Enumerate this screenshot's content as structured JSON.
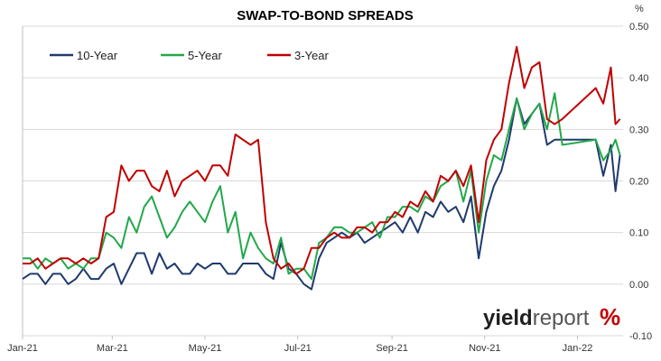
{
  "chart_data": {
    "type": "line",
    "title": "SWAP-TO-BOND SPREADS",
    "y_unit_label": "%",
    "xlabel": "",
    "ylabel": "",
    "ylim": [
      -0.1,
      0.5
    ],
    "y_ticks": [
      "0.50",
      "0.40",
      "0.30",
      "0.20",
      "0.10",
      "0.00",
      "-0.10"
    ],
    "x_ticks": [
      "Jan-21",
      "Mar-21",
      "May-21",
      "Jul-21",
      "Sep-21",
      "Nov-21",
      "Jan-22"
    ],
    "x_tick_dates": [
      "2021-01-01",
      "2021-03-01",
      "2021-05-01",
      "2021-07-01",
      "2021-09-01",
      "2021-11-01",
      "2022-01-01"
    ],
    "xlim": [
      "2021-01-01",
      "2022-01-31"
    ],
    "grid": "horizontal",
    "legend_position": "top-left",
    "series": [
      {
        "name": "10-Year",
        "color": "#1f3a6e",
        "points": [
          [
            "2021-01-01",
            0.01
          ],
          [
            "2021-01-06",
            0.02
          ],
          [
            "2021-01-11",
            0.02
          ],
          [
            "2021-01-16",
            0.0
          ],
          [
            "2021-01-21",
            0.02
          ],
          [
            "2021-01-26",
            0.02
          ],
          [
            "2021-01-31",
            0.0
          ],
          [
            "2021-02-05",
            0.01
          ],
          [
            "2021-02-10",
            0.03
          ],
          [
            "2021-02-15",
            0.01
          ],
          [
            "2021-02-20",
            0.01
          ],
          [
            "2021-02-25",
            0.03
          ],
          [
            "2021-03-02",
            0.04
          ],
          [
            "2021-03-07",
            0.0
          ],
          [
            "2021-03-12",
            0.03
          ],
          [
            "2021-03-17",
            0.06
          ],
          [
            "2021-03-22",
            0.06
          ],
          [
            "2021-03-27",
            0.02
          ],
          [
            "2021-04-01",
            0.06
          ],
          [
            "2021-04-06",
            0.03
          ],
          [
            "2021-04-11",
            0.04
          ],
          [
            "2021-04-16",
            0.02
          ],
          [
            "2021-04-21",
            0.02
          ],
          [
            "2021-04-26",
            0.04
          ],
          [
            "2021-05-01",
            0.03
          ],
          [
            "2021-05-06",
            0.04
          ],
          [
            "2021-05-11",
            0.04
          ],
          [
            "2021-05-16",
            0.02
          ],
          [
            "2021-05-21",
            0.02
          ],
          [
            "2021-05-26",
            0.04
          ],
          [
            "2021-05-31",
            0.04
          ],
          [
            "2021-06-05",
            0.04
          ],
          [
            "2021-06-10",
            0.02
          ],
          [
            "2021-06-15",
            0.01
          ],
          [
            "2021-06-20",
            0.08
          ],
          [
            "2021-06-25",
            0.03
          ],
          [
            "2021-06-30",
            0.02
          ],
          [
            "2021-07-05",
            0.0
          ],
          [
            "2021-07-10",
            -0.01
          ],
          [
            "2021-07-15",
            0.05
          ],
          [
            "2021-07-20",
            0.08
          ],
          [
            "2021-07-25",
            0.09
          ],
          [
            "2021-07-30",
            0.1
          ],
          [
            "2021-08-04",
            0.09
          ],
          [
            "2021-08-09",
            0.1
          ],
          [
            "2021-08-14",
            0.08
          ],
          [
            "2021-08-19",
            0.09
          ],
          [
            "2021-08-24",
            0.1
          ],
          [
            "2021-08-29",
            0.11
          ],
          [
            "2021-09-03",
            0.12
          ],
          [
            "2021-09-08",
            0.1
          ],
          [
            "2021-09-13",
            0.13
          ],
          [
            "2021-09-18",
            0.1
          ],
          [
            "2021-09-23",
            0.14
          ],
          [
            "2021-09-28",
            0.13
          ],
          [
            "2021-10-03",
            0.16
          ],
          [
            "2021-10-08",
            0.14
          ],
          [
            "2021-10-13",
            0.15
          ],
          [
            "2021-10-18",
            0.12
          ],
          [
            "2021-10-23",
            0.17
          ],
          [
            "2021-10-28",
            0.05
          ],
          [
            "2021-11-02",
            0.14
          ],
          [
            "2021-11-07",
            0.19
          ],
          [
            "2021-11-12",
            0.22
          ],
          [
            "2021-11-17",
            0.28
          ],
          [
            "2021-11-22",
            0.36
          ],
          [
            "2021-11-27",
            0.31
          ],
          [
            "2021-12-02",
            0.33
          ],
          [
            "2021-12-07",
            0.35
          ],
          [
            "2021-12-12",
            0.27
          ],
          [
            "2021-12-17",
            0.28
          ],
          [
            "2021-12-22",
            0.28
          ],
          [
            "2022-01-13",
            0.28
          ],
          [
            "2022-01-18",
            0.21
          ],
          [
            "2022-01-23",
            0.27
          ],
          [
            "2022-01-26",
            0.18
          ],
          [
            "2022-01-29",
            0.25
          ]
        ]
      },
      {
        "name": "5-Year",
        "color": "#22a84a",
        "points": [
          [
            "2021-01-01",
            0.05
          ],
          [
            "2021-01-06",
            0.05
          ],
          [
            "2021-01-11",
            0.03
          ],
          [
            "2021-01-16",
            0.05
          ],
          [
            "2021-01-21",
            0.04
          ],
          [
            "2021-01-26",
            0.05
          ],
          [
            "2021-01-31",
            0.03
          ],
          [
            "2021-02-05",
            0.04
          ],
          [
            "2021-02-10",
            0.03
          ],
          [
            "2021-02-15",
            0.05
          ],
          [
            "2021-02-20",
            0.05
          ],
          [
            "2021-02-25",
            0.1
          ],
          [
            "2021-03-02",
            0.09
          ],
          [
            "2021-03-07",
            0.07
          ],
          [
            "2021-03-12",
            0.13
          ],
          [
            "2021-03-17",
            0.1
          ],
          [
            "2021-03-22",
            0.15
          ],
          [
            "2021-03-27",
            0.17
          ],
          [
            "2021-04-01",
            0.13
          ],
          [
            "2021-04-06",
            0.09
          ],
          [
            "2021-04-11",
            0.11
          ],
          [
            "2021-04-16",
            0.14
          ],
          [
            "2021-04-21",
            0.16
          ],
          [
            "2021-04-26",
            0.14
          ],
          [
            "2021-05-01",
            0.12
          ],
          [
            "2021-05-06",
            0.16
          ],
          [
            "2021-05-11",
            0.19
          ],
          [
            "2021-05-16",
            0.1
          ],
          [
            "2021-05-21",
            0.14
          ],
          [
            "2021-05-26",
            0.05
          ],
          [
            "2021-05-31",
            0.1
          ],
          [
            "2021-06-05",
            0.07
          ],
          [
            "2021-06-10",
            0.05
          ],
          [
            "2021-06-15",
            0.04
          ],
          [
            "2021-06-20",
            0.09
          ],
          [
            "2021-06-25",
            0.02
          ],
          [
            "2021-06-30",
            0.03
          ],
          [
            "2021-07-05",
            0.03
          ],
          [
            "2021-07-10",
            0.01
          ],
          [
            "2021-07-15",
            0.08
          ],
          [
            "2021-07-20",
            0.09
          ],
          [
            "2021-07-25",
            0.11
          ],
          [
            "2021-07-30",
            0.11
          ],
          [
            "2021-08-04",
            0.1
          ],
          [
            "2021-08-09",
            0.1
          ],
          [
            "2021-08-14",
            0.11
          ],
          [
            "2021-08-19",
            0.12
          ],
          [
            "2021-08-24",
            0.09
          ],
          [
            "2021-08-29",
            0.13
          ],
          [
            "2021-09-03",
            0.13
          ],
          [
            "2021-09-08",
            0.15
          ],
          [
            "2021-09-13",
            0.15
          ],
          [
            "2021-09-18",
            0.14
          ],
          [
            "2021-09-23",
            0.17
          ],
          [
            "2021-09-28",
            0.16
          ],
          [
            "2021-10-03",
            0.19
          ],
          [
            "2021-10-08",
            0.2
          ],
          [
            "2021-10-13",
            0.22
          ],
          [
            "2021-10-18",
            0.16
          ],
          [
            "2021-10-23",
            0.22
          ],
          [
            "2021-10-28",
            0.1
          ],
          [
            "2021-11-02",
            0.2
          ],
          [
            "2021-11-07",
            0.25
          ],
          [
            "2021-11-12",
            0.24
          ],
          [
            "2021-11-17",
            0.3
          ],
          [
            "2021-11-22",
            0.36
          ],
          [
            "2021-11-27",
            0.3
          ],
          [
            "2021-12-02",
            0.33
          ],
          [
            "2021-12-07",
            0.35
          ],
          [
            "2021-12-12",
            0.3
          ],
          [
            "2021-12-17",
            0.37
          ],
          [
            "2021-12-22",
            0.27
          ],
          [
            "2022-01-13",
            0.28
          ],
          [
            "2022-01-18",
            0.24
          ],
          [
            "2022-01-23",
            0.26
          ],
          [
            "2022-01-26",
            0.28
          ],
          [
            "2022-01-29",
            0.25
          ]
        ]
      },
      {
        "name": "3-Year",
        "color": "#c00000",
        "points": [
          [
            "2021-01-01",
            0.04
          ],
          [
            "2021-01-06",
            0.04
          ],
          [
            "2021-01-11",
            0.05
          ],
          [
            "2021-01-16",
            0.03
          ],
          [
            "2021-01-21",
            0.04
          ],
          [
            "2021-01-26",
            0.05
          ],
          [
            "2021-01-31",
            0.05
          ],
          [
            "2021-02-05",
            0.04
          ],
          [
            "2021-02-10",
            0.05
          ],
          [
            "2021-02-15",
            0.04
          ],
          [
            "2021-02-20",
            0.05
          ],
          [
            "2021-02-25",
            0.13
          ],
          [
            "2021-03-02",
            0.14
          ],
          [
            "2021-03-07",
            0.23
          ],
          [
            "2021-03-12",
            0.2
          ],
          [
            "2021-03-17",
            0.22
          ],
          [
            "2021-03-22",
            0.22
          ],
          [
            "2021-03-27",
            0.19
          ],
          [
            "2021-04-01",
            0.18
          ],
          [
            "2021-04-06",
            0.22
          ],
          [
            "2021-04-11",
            0.17
          ],
          [
            "2021-04-16",
            0.2
          ],
          [
            "2021-04-21",
            0.21
          ],
          [
            "2021-04-26",
            0.22
          ],
          [
            "2021-05-01",
            0.2
          ],
          [
            "2021-05-06",
            0.23
          ],
          [
            "2021-05-11",
            0.23
          ],
          [
            "2021-05-16",
            0.21
          ],
          [
            "2021-05-21",
            0.29
          ],
          [
            "2021-05-26",
            0.28
          ],
          [
            "2021-05-31",
            0.27
          ],
          [
            "2021-06-05",
            0.28
          ],
          [
            "2021-06-10",
            0.12
          ],
          [
            "2021-06-15",
            0.05
          ],
          [
            "2021-06-20",
            0.03
          ],
          [
            "2021-06-25",
            0.04
          ],
          [
            "2021-06-30",
            0.02
          ],
          [
            "2021-07-05",
            0.03
          ],
          [
            "2021-07-10",
            0.07
          ],
          [
            "2021-07-15",
            0.07
          ],
          [
            "2021-07-20",
            0.09
          ],
          [
            "2021-07-25",
            0.1
          ],
          [
            "2021-07-30",
            0.09
          ],
          [
            "2021-08-04",
            0.09
          ],
          [
            "2021-08-09",
            0.11
          ],
          [
            "2021-08-14",
            0.11
          ],
          [
            "2021-08-19",
            0.1
          ],
          [
            "2021-08-24",
            0.12
          ],
          [
            "2021-08-29",
            0.12
          ],
          [
            "2021-09-03",
            0.14
          ],
          [
            "2021-09-08",
            0.13
          ],
          [
            "2021-09-13",
            0.16
          ],
          [
            "2021-09-18",
            0.15
          ],
          [
            "2021-09-23",
            0.18
          ],
          [
            "2021-09-28",
            0.16
          ],
          [
            "2021-10-03",
            0.21
          ],
          [
            "2021-10-08",
            0.2
          ],
          [
            "2021-10-13",
            0.22
          ],
          [
            "2021-10-18",
            0.19
          ],
          [
            "2021-10-23",
            0.23
          ],
          [
            "2021-10-28",
            0.12
          ],
          [
            "2021-11-02",
            0.24
          ],
          [
            "2021-11-07",
            0.28
          ],
          [
            "2021-11-12",
            0.3
          ],
          [
            "2021-11-17",
            0.39
          ],
          [
            "2021-11-22",
            0.46
          ],
          [
            "2021-11-27",
            0.38
          ],
          [
            "2021-12-02",
            0.42
          ],
          [
            "2021-12-07",
            0.43
          ],
          [
            "2021-12-12",
            0.32
          ],
          [
            "2021-12-17",
            0.31
          ],
          [
            "2021-12-22",
            0.32
          ],
          [
            "2022-01-13",
            0.38
          ],
          [
            "2022-01-18",
            0.35
          ],
          [
            "2022-01-23",
            0.42
          ],
          [
            "2022-01-26",
            0.31
          ],
          [
            "2022-01-29",
            0.32
          ]
        ]
      }
    ]
  },
  "watermark": {
    "brand_bold": "yield",
    "brand_light": "report",
    "brand_symbol": "%"
  }
}
